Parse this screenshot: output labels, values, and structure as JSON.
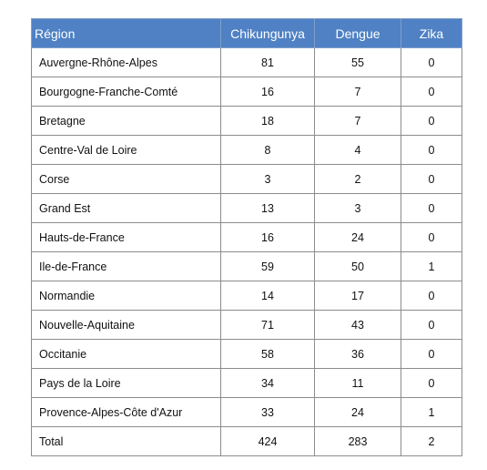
{
  "table": {
    "header": [
      "Région",
      "Chikungunya",
      "Dengue",
      "Zika"
    ],
    "rows": [
      [
        "Auvergne-Rhône-Alpes",
        81,
        55,
        0
      ],
      [
        "Bourgogne-Franche-Comté",
        16,
        7,
        0
      ],
      [
        "Bretagne",
        18,
        7,
        0
      ],
      [
        "Centre-Val de Loire",
        8,
        4,
        0
      ],
      [
        "Corse",
        3,
        2,
        0
      ],
      [
        "Grand Est",
        13,
        3,
        0
      ],
      [
        "Hauts-de-France",
        16,
        24,
        0
      ],
      [
        "Ile-de-France",
        59,
        50,
        1
      ],
      [
        "Normandie",
        14,
        17,
        0
      ],
      [
        "Nouvelle-Aquitaine",
        71,
        43,
        0
      ],
      [
        "Occitanie",
        58,
        36,
        0
      ],
      [
        "Pays de la Loire",
        34,
        11,
        0
      ],
      [
        "Provence-Alpes-Côte d'Azur",
        33,
        24,
        1
      ],
      [
        "Total",
        424,
        283,
        2
      ]
    ]
  }
}
